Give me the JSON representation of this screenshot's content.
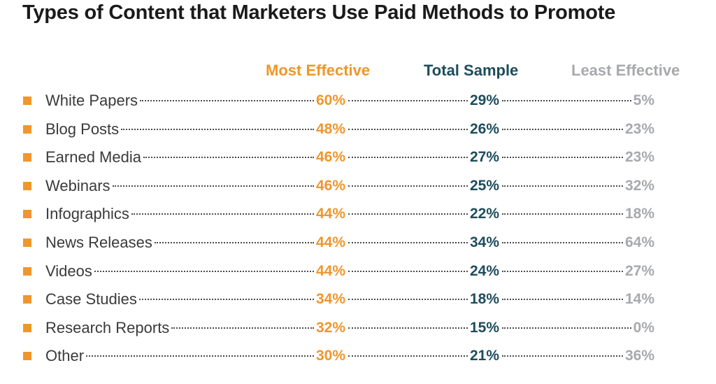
{
  "title": "Types of Content that Marketers Use Paid Methods to Promote",
  "colors": {
    "most": "#f0962a",
    "total": "#1d4d5c",
    "least": "#a7a9ac",
    "bullet": "#f0962a"
  },
  "chart_data": {
    "type": "table",
    "title": "Types of Content that Marketers Use Paid Methods to Promote",
    "columns": [
      "Most Effective",
      "Total Sample",
      "Least Effective"
    ],
    "rows": [
      {
        "label": "White Papers",
        "values": [
          "60%",
          "29%",
          "5%"
        ]
      },
      {
        "label": "Blog Posts",
        "values": [
          "48%",
          "26%",
          "23%"
        ]
      },
      {
        "label": "Earned Media",
        "values": [
          "46%",
          "27%",
          "23%"
        ]
      },
      {
        "label": "Webinars",
        "values": [
          "46%",
          "25%",
          "32%"
        ]
      },
      {
        "label": "Infographics",
        "values": [
          "44%",
          "22%",
          "18%"
        ]
      },
      {
        "label": "News Releases",
        "values": [
          "44%",
          "34%",
          "64%"
        ]
      },
      {
        "label": "Videos",
        "values": [
          "44%",
          "24%",
          "27%"
        ]
      },
      {
        "label": "Case Studies",
        "values": [
          "34%",
          "18%",
          "14%"
        ]
      },
      {
        "label": "Research Reports",
        "values": [
          "32%",
          "15%",
          "0%"
        ]
      },
      {
        "label": "Other",
        "values": [
          "30%",
          "21%",
          "36%"
        ]
      }
    ]
  }
}
